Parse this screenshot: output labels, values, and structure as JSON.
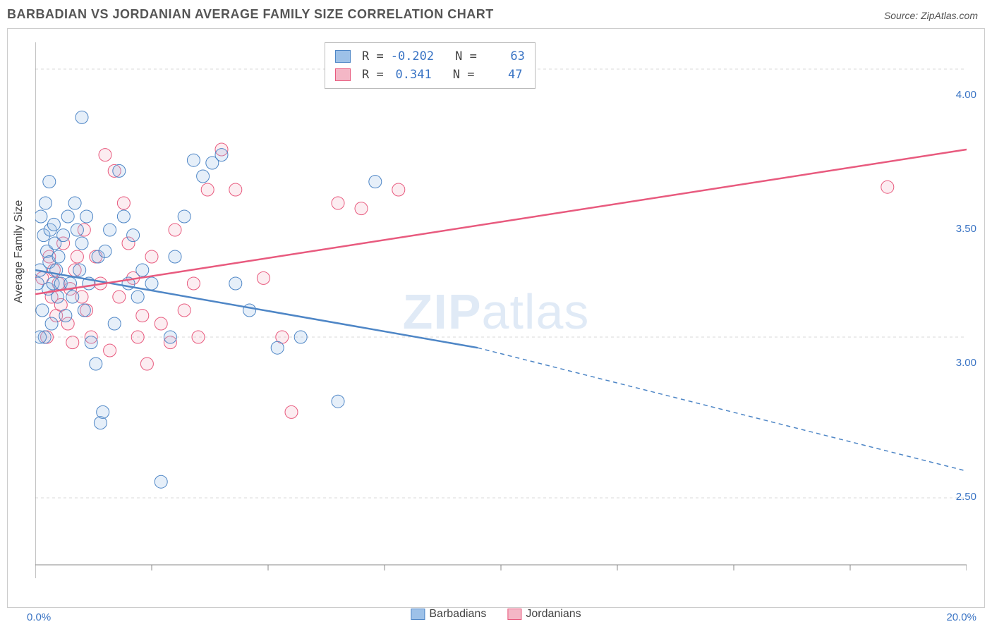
{
  "chart": {
    "title": "BARBADIAN VS JORDANIAN AVERAGE FAMILY SIZE CORRELATION CHART",
    "source": "Source: ZipAtlas.com",
    "y_label": "Average Family Size",
    "x_min_label": "0.0%",
    "x_max_label": "20.0%",
    "watermark": "ZIPatlas",
    "type": "scatter",
    "background_color": "#ffffff",
    "grid_color": "#d9d9d9",
    "axis_label_color": "#3a74c4",
    "marker_radius": 9,
    "marker_stroke_width": 1,
    "marker_fill_opacity": 0.25,
    "trend_line_width": 2.5,
    "xlim": [
      0,
      20
    ],
    "ylim": [
      2.2,
      4.2
    ],
    "y_ticks": [
      2.5,
      3.0,
      3.5,
      4.0
    ],
    "y_gridlines": [
      2.5,
      3.1,
      4.1
    ],
    "x_tick_positions": [
      0,
      2.5,
      5,
      7.5,
      10,
      12.5,
      15,
      17.5,
      20
    ],
    "x_axis_y": 2.25,
    "series": [
      {
        "name": "Barbadians",
        "fill": "#9dc1e8",
        "stroke": "#4e86c6",
        "r": "-0.202",
        "n": "63",
        "trend": {
          "x1": 0,
          "y1": 3.35,
          "x2_solid": 9.5,
          "y2_solid": 3.06,
          "x2": 20,
          "y2": 2.6
        },
        "points": [
          [
            0.05,
            3.3
          ],
          [
            0.1,
            3.35
          ],
          [
            0.12,
            3.55
          ],
          [
            0.15,
            3.2
          ],
          [
            0.18,
            3.48
          ],
          [
            0.2,
            3.1
          ],
          [
            0.22,
            3.6
          ],
          [
            0.25,
            3.42
          ],
          [
            0.28,
            3.28
          ],
          [
            0.3,
            3.38
          ],
          [
            0.32,
            3.5
          ],
          [
            0.35,
            3.15
          ],
          [
            0.38,
            3.3
          ],
          [
            0.4,
            3.52
          ],
          [
            0.42,
            3.45
          ],
          [
            0.45,
            3.35
          ],
          [
            0.48,
            3.25
          ],
          [
            0.5,
            3.4
          ],
          [
            0.55,
            3.3
          ],
          [
            0.6,
            3.48
          ],
          [
            0.65,
            3.18
          ],
          [
            0.7,
            3.55
          ],
          [
            0.75,
            3.3
          ],
          [
            0.8,
            3.25
          ],
          [
            0.85,
            3.6
          ],
          [
            0.9,
            3.5
          ],
          [
            0.95,
            3.35
          ],
          [
            1.0,
            3.45
          ],
          [
            1.05,
            3.2
          ],
          [
            1.1,
            3.55
          ],
          [
            1.15,
            3.3
          ],
          [
            1.2,
            3.08
          ],
          [
            1.3,
            3.0
          ],
          [
            1.35,
            3.4
          ],
          [
            1.4,
            2.78
          ],
          [
            1.45,
            2.82
          ],
          [
            1.5,
            3.42
          ],
          [
            1.6,
            3.5
          ],
          [
            1.7,
            3.15
          ],
          [
            1.8,
            3.72
          ],
          [
            1.9,
            3.55
          ],
          [
            2.0,
            3.3
          ],
          [
            2.1,
            3.48
          ],
          [
            2.2,
            3.25
          ],
          [
            2.3,
            3.35
          ],
          [
            2.5,
            3.3
          ],
          [
            2.7,
            2.56
          ],
          [
            2.9,
            3.1
          ],
          [
            3.0,
            3.4
          ],
          [
            3.2,
            3.55
          ],
          [
            3.4,
            3.76
          ],
          [
            3.6,
            3.7
          ],
          [
            3.8,
            3.75
          ],
          [
            4.0,
            3.78
          ],
          [
            4.3,
            3.3
          ],
          [
            4.6,
            3.2
          ],
          [
            5.2,
            3.06
          ],
          [
            5.7,
            3.1
          ],
          [
            6.5,
            2.86
          ],
          [
            7.3,
            3.68
          ],
          [
            1.0,
            3.92
          ],
          [
            0.3,
            3.68
          ],
          [
            0.1,
            3.1
          ]
        ]
      },
      {
        "name": "Jordanians",
        "fill": "#f4b7c6",
        "stroke": "#e85a7e",
        "r": "0.341",
        "n": "47",
        "trend": {
          "x1": 0,
          "y1": 3.26,
          "x2_solid": 20,
          "y2_solid": 3.8,
          "x2": 20,
          "y2": 3.8
        },
        "points": [
          [
            0.15,
            3.32
          ],
          [
            0.25,
            3.1
          ],
          [
            0.3,
            3.4
          ],
          [
            0.35,
            3.25
          ],
          [
            0.4,
            3.35
          ],
          [
            0.45,
            3.18
          ],
          [
            0.5,
            3.3
          ],
          [
            0.55,
            3.22
          ],
          [
            0.6,
            3.45
          ],
          [
            0.7,
            3.15
          ],
          [
            0.75,
            3.28
          ],
          [
            0.8,
            3.08
          ],
          [
            0.85,
            3.35
          ],
          [
            0.9,
            3.4
          ],
          [
            1.0,
            3.25
          ],
          [
            1.05,
            3.5
          ],
          [
            1.1,
            3.2
          ],
          [
            1.2,
            3.1
          ],
          [
            1.3,
            3.4
          ],
          [
            1.4,
            3.3
          ],
          [
            1.5,
            3.78
          ],
          [
            1.6,
            3.05
          ],
          [
            1.7,
            3.72
          ],
          [
            1.8,
            3.25
          ],
          [
            1.9,
            3.6
          ],
          [
            2.0,
            3.45
          ],
          [
            2.1,
            3.32
          ],
          [
            2.2,
            3.1
          ],
          [
            2.3,
            3.18
          ],
          [
            2.4,
            3.0
          ],
          [
            2.5,
            3.4
          ],
          [
            2.7,
            3.15
          ],
          [
            2.9,
            3.08
          ],
          [
            3.0,
            3.5
          ],
          [
            3.2,
            3.2
          ],
          [
            3.4,
            3.3
          ],
          [
            3.5,
            3.1
          ],
          [
            3.7,
            3.65
          ],
          [
            4.0,
            3.8
          ],
          [
            4.3,
            3.65
          ],
          [
            4.9,
            3.32
          ],
          [
            5.3,
            3.1
          ],
          [
            5.5,
            2.82
          ],
          [
            6.5,
            3.6
          ],
          [
            7.0,
            3.58
          ],
          [
            7.8,
            3.65
          ],
          [
            18.3,
            3.66
          ]
        ]
      }
    ]
  }
}
